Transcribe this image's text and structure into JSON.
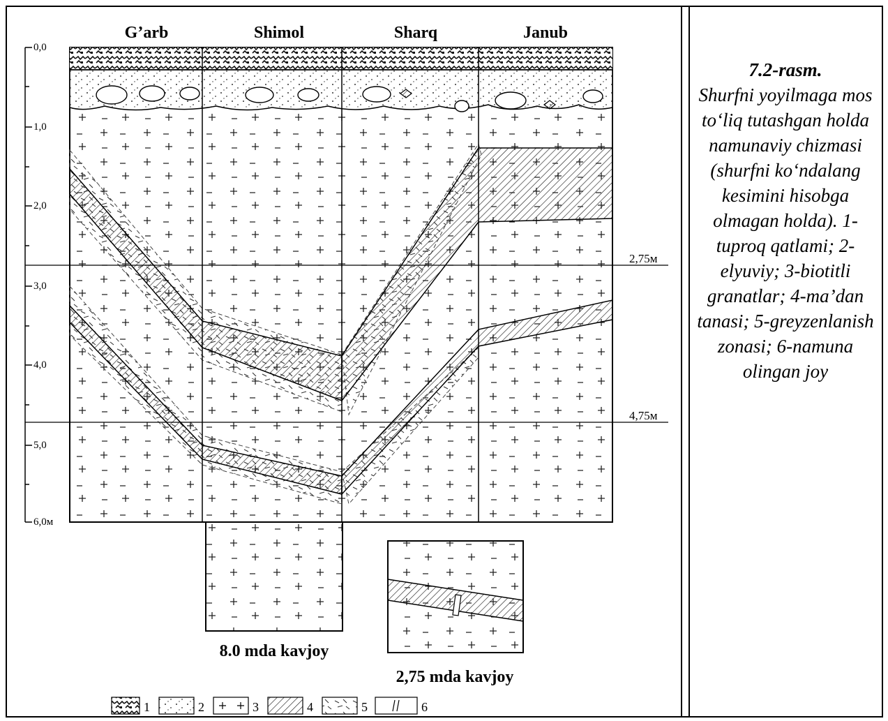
{
  "figure": {
    "directions": [
      "G’arb",
      "Shimol",
      "Sharq",
      "Janub"
    ],
    "depth_ticks": [
      "0,0",
      "1,0",
      "2,0",
      "3,0",
      "4,0",
      "5,0",
      "6,0м"
    ],
    "level_labels": [
      "2,75м",
      "4,75м"
    ],
    "lower_box_label": "8.0 mda kavjoy",
    "inset_label": "2,75 mda kavjoy",
    "legend": [
      "1",
      "2",
      "3",
      "4",
      "5",
      "6"
    ]
  },
  "caption": {
    "title": "7.2-rasm.",
    "body": "Shurfni yoyilmaga mos to‘liq tutashgan holda namunaviy chizmasi (shurfni ko‘ndalang kesimini hisobga olmagan holda). 1-tuproq qatlami; 2-elyuviy; 3-biotitli granatlar; 4-ma’dan tanasi; 5-greyzenlanish zonasi; 6-namuna olingan joy"
  }
}
